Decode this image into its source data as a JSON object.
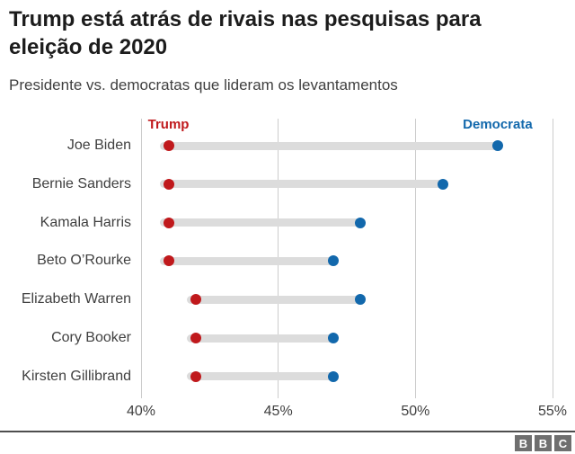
{
  "header": {
    "title": "Trump está atrás de rivais nas pesquisas para eleição de 2020",
    "subtitle": "Presidente vs. democratas que lideram os levantamentos"
  },
  "chart_data": {
    "type": "scatter",
    "variant": "dumbbell",
    "title": "Trump está atrás de rivais nas pesquisas para eleição de 2020",
    "subtitle": "Presidente vs. democratas que lideram os levantamentos",
    "categories": [
      "Joe Biden",
      "Bernie Sanders",
      "Kamala Harris",
      "Beto O’Rourke",
      "Elizabeth Warren",
      "Cory Booker",
      "Kirsten Gillibrand"
    ],
    "series": [
      {
        "name": "Trump",
        "color": "#c0191c",
        "values": [
          41,
          41,
          41,
          41,
          42,
          42,
          42
        ]
      },
      {
        "name": "Democrata",
        "color": "#1268ac",
        "values": [
          53,
          51,
          48,
          47,
          48,
          47,
          47
        ]
      }
    ],
    "xlim": [
      40,
      55
    ],
    "x_ticks": [
      {
        "value": 40,
        "label": "40%"
      },
      {
        "value": 45,
        "label": "45%"
      },
      {
        "value": 50,
        "label": "50%"
      },
      {
        "value": 55,
        "label": "55%"
      }
    ],
    "grid": "vertical",
    "legend_position": "top-inside",
    "connector_color": "#dcdcdc",
    "gridline_color": "#cccccc",
    "xlabel": "",
    "ylabel": ""
  },
  "footer": {
    "logo_name": "BBC",
    "logo_letters": [
      "B",
      "B",
      "C"
    ]
  }
}
